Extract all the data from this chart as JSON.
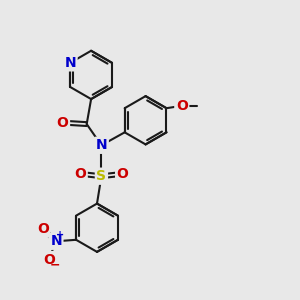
{
  "bg_color": "#e8e8e8",
  "bond_color": "#1a1a1a",
  "bond_width": 1.5,
  "atom_colors": {
    "N": "#0000cc",
    "O": "#cc0000",
    "S": "#bbbb00",
    "C": "#1a1a1a"
  },
  "font_size_atom": 10,
  "figsize": [
    3.0,
    3.0
  ],
  "dpi": 100,
  "scale": 1.0
}
